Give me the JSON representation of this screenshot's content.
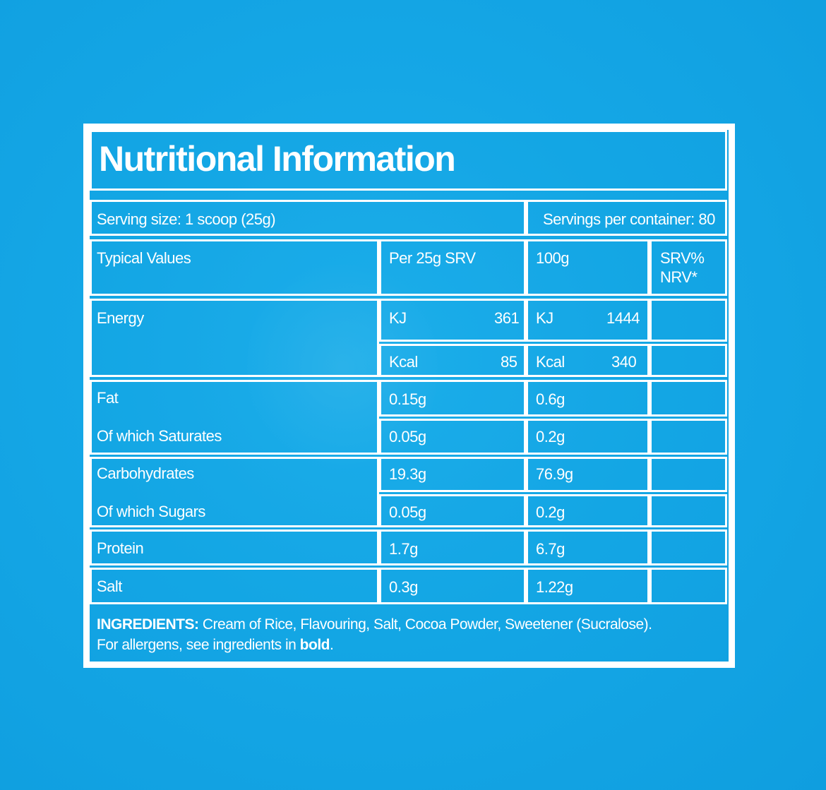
{
  "title": "Nutritional Information",
  "serving_size": "Serving size: 1 scoop (25g)",
  "servings_per_container": "Servings per container: 80",
  "headers": {
    "typical_values": "Typical Values",
    "per_serving": "Per 25g SRV",
    "per_100g": "100g",
    "nrv_line1": "SRV%",
    "nrv_line2": "NRV*"
  },
  "energy": {
    "label": "Energy",
    "kj_unit": "KJ",
    "kj_serving": "361",
    "kj_100g": "1444",
    "kcal_unit": "Kcal",
    "kcal_serving": "85",
    "kcal_100g": "340"
  },
  "rows": [
    {
      "label": "Fat",
      "serving": "0.15g",
      "per100": "0.6g"
    },
    {
      "label": "Of which Saturates",
      "serving": "0.05g",
      "per100": "0.2g"
    },
    {
      "label": "Carbohydrates",
      "serving": "19.3g",
      "per100": "76.9g"
    },
    {
      "label": "Of which Sugars",
      "serving": "0.05g",
      "per100": "0.2g"
    },
    {
      "label": "Protein",
      "serving": "1.7g",
      "per100": "6.7g"
    },
    {
      "label": "Salt",
      "serving": "0.3g",
      "per100": "1.22g"
    }
  ],
  "ingredients": {
    "heading": "INGREDIENTS:",
    "text": " Cream of Rice, Flavouring, Salt, Cocoa Powder, Sweetener (Sucralose).",
    "allergen_prefix": "For allergens, see ingredients in ",
    "allergen_bold": "bold",
    "allergen_suffix": "."
  },
  "colors": {
    "background": "#15a7e6",
    "lines": "#ffffff",
    "text": "#ffffff"
  }
}
